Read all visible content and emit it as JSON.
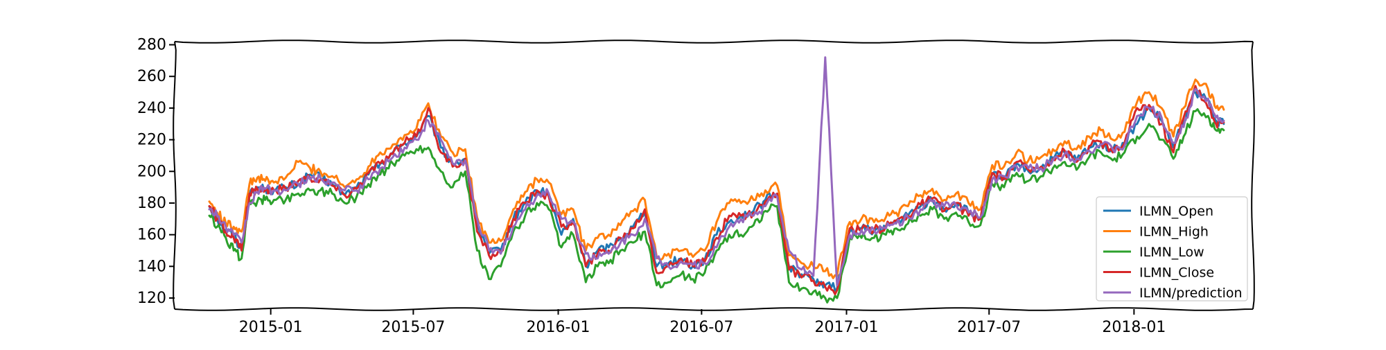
{
  "chart_data": {
    "type": "line",
    "title": "",
    "xlabel": "",
    "ylabel": "",
    "x_type": "date",
    "xlim": [
      "2014-09-01",
      "2018-06-01"
    ],
    "ylim": [
      113,
      282
    ],
    "yticks": [
      120,
      140,
      160,
      180,
      200,
      220,
      240,
      260,
      280
    ],
    "xticks": [
      {
        "date": "2015-01-01",
        "label": "2015-01"
      },
      {
        "date": "2015-07-01",
        "label": "2015-07"
      },
      {
        "date": "2016-01-01",
        "label": "2016-01"
      },
      {
        "date": "2016-07-01",
        "label": "2016-07"
      },
      {
        "date": "2017-01-01",
        "label": "2017-01"
      },
      {
        "date": "2017-07-01",
        "label": "2017-07"
      },
      {
        "date": "2018-01-01",
        "label": "2018-01"
      }
    ],
    "grid": false,
    "legend_position": "lower right",
    "x": [
      "2014-10-15",
      "2014-10-25",
      "2014-11-05",
      "2014-11-15",
      "2014-11-25",
      "2014-12-05",
      "2014-12-15",
      "2014-12-25",
      "2015-01-05",
      "2015-01-20",
      "2015-02-05",
      "2015-02-20",
      "2015-03-05",
      "2015-03-20",
      "2015-04-05",
      "2015-04-20",
      "2015-05-05",
      "2015-05-20",
      "2015-06-05",
      "2015-06-20",
      "2015-07-05",
      "2015-07-20",
      "2015-08-05",
      "2015-08-20",
      "2015-09-05",
      "2015-09-20",
      "2015-10-05",
      "2015-10-20",
      "2015-11-05",
      "2015-11-20",
      "2015-12-05",
      "2015-12-20",
      "2016-01-05",
      "2016-01-20",
      "2016-02-05",
      "2016-02-20",
      "2016-03-05",
      "2016-03-20",
      "2016-04-05",
      "2016-04-20",
      "2016-05-05",
      "2016-05-20",
      "2016-06-05",
      "2016-06-20",
      "2016-07-05",
      "2016-07-20",
      "2016-08-05",
      "2016-08-20",
      "2016-09-05",
      "2016-09-20",
      "2016-10-05",
      "2016-10-20",
      "2016-11-05",
      "2016-11-20",
      "2016-12-05",
      "2016-12-20",
      "2017-01-05",
      "2017-01-20",
      "2017-02-05",
      "2017-02-20",
      "2017-03-05",
      "2017-03-20",
      "2017-04-05",
      "2017-04-20",
      "2017-05-05",
      "2017-05-20",
      "2017-06-05",
      "2017-06-20",
      "2017-07-05",
      "2017-07-20",
      "2017-08-05",
      "2017-08-20",
      "2017-09-05",
      "2017-09-20",
      "2017-10-05",
      "2017-10-20",
      "2017-11-05",
      "2017-11-20",
      "2017-12-05",
      "2017-12-20",
      "2018-01-05",
      "2018-01-20",
      "2018-02-05",
      "2018-02-20",
      "2018-03-05",
      "2018-03-20",
      "2018-04-05",
      "2018-04-15",
      "2018-04-25"
    ],
    "series": [
      {
        "name": "ILMN_Open",
        "color": "#1f77b4",
        "values": [
          178,
          170,
          163,
          160,
          150,
          185,
          190,
          189,
          188,
          190,
          192,
          198,
          196,
          192,
          185,
          190,
          198,
          205,
          212,
          218,
          222,
          235,
          215,
          205,
          208,
          165,
          148,
          150,
          170,
          180,
          188,
          185,
          160,
          170,
          140,
          150,
          152,
          158,
          165,
          175,
          140,
          142,
          145,
          140,
          144,
          160,
          168,
          172,
          175,
          182,
          186,
          140,
          135,
          132,
          128,
          126,
          162,
          164,
          162,
          165,
          168,
          172,
          178,
          182,
          176,
          180,
          174,
          170,
          198,
          195,
          205,
          200,
          202,
          208,
          212,
          207,
          215,
          218,
          213,
          218,
          230,
          240,
          232,
          215,
          232,
          250,
          245,
          232,
          230
        ]
      },
      {
        "name": "ILMN_High",
        "color": "#ff7f0e",
        "values": [
          181,
          174,
          167,
          165,
          162,
          192,
          196,
          194,
          193,
          196,
          206,
          202,
          200,
          197,
          190,
          195,
          203,
          212,
          217,
          223,
          227,
          243,
          222,
          212,
          214,
          171,
          155,
          156,
          176,
          187,
          195,
          193,
          173,
          176,
          150,
          158,
          160,
          166,
          175,
          182,
          146,
          148,
          150,
          146,
          150,
          168,
          180,
          180,
          182,
          188,
          191,
          147,
          142,
          140,
          137,
          134,
          168,
          170,
          168,
          171,
          174,
          178,
          185,
          189,
          182,
          186,
          180,
          176,
          204,
          203,
          212,
          207,
          209,
          214,
          219,
          214,
          222,
          226,
          220,
          225,
          244,
          250,
          240,
          222,
          240,
          258,
          252,
          240,
          239
        ]
      },
      {
        "name": "ILMN_Low",
        "color": "#2ca02c",
        "values": [
          172,
          165,
          158,
          150,
          145,
          182,
          181,
          182,
          182,
          182,
          186,
          188,
          188,
          186,
          180,
          184,
          192,
          198,
          205,
          210,
          214,
          215,
          200,
          190,
          200,
          150,
          132,
          140,
          162,
          172,
          180,
          176,
          152,
          160,
          130,
          140,
          142,
          150,
          155,
          162,
          128,
          130,
          135,
          132,
          136,
          150,
          160,
          160,
          166,
          175,
          178,
          130,
          126,
          124,
          120,
          120,
          158,
          158,
          158,
          160,
          164,
          167,
          172,
          176,
          170,
          174,
          168,
          166,
          192,
          190,
          199,
          194,
          197,
          202,
          206,
          201,
          209,
          212,
          207,
          212,
          222,
          230,
          220,
          208,
          222,
          238,
          235,
          226,
          226
        ]
      },
      {
        "name": "ILMN_Close",
        "color": "#d62728",
        "values": [
          178,
          170,
          162,
          158,
          150,
          186,
          189,
          188,
          188,
          189,
          194,
          196,
          195,
          191,
          185,
          189,
          199,
          205,
          211,
          218,
          222,
          240,
          212,
          203,
          208,
          162,
          147,
          149,
          170,
          180,
          188,
          184,
          165,
          168,
          140,
          148,
          150,
          158,
          164,
          176,
          136,
          140,
          145,
          140,
          143,
          158,
          172,
          172,
          174,
          181,
          186,
          138,
          133,
          131,
          127,
          125,
          164,
          163,
          163,
          165,
          169,
          172,
          179,
          183,
          175,
          180,
          172,
          170,
          199,
          196,
          206,
          201,
          203,
          208,
          213,
          206,
          216,
          219,
          212,
          218,
          240,
          242,
          230,
          212,
          234,
          254,
          240,
          230,
          231
        ]
      },
      {
        "name": "ILMN/prediction",
        "color": "#9467bd",
        "values": [
          176,
          172,
          165,
          160,
          155,
          180,
          187,
          189,
          188,
          188,
          192,
          195,
          196,
          193,
          188,
          188,
          195,
          202,
          209,
          215,
          220,
          232,
          220,
          205,
          207,
          170,
          150,
          148,
          165,
          176,
          185,
          186,
          170,
          168,
          148,
          145,
          148,
          155,
          160,
          170,
          145,
          140,
          143,
          141,
          142,
          152,
          165,
          170,
          172,
          178,
          184,
          150,
          138,
          134,
          272,
          128,
          160,
          163,
          163,
          164,
          167,
          171,
          176,
          181,
          178,
          179,
          174,
          171,
          195,
          197,
          203,
          202,
          202,
          207,
          211,
          208,
          213,
          217,
          214,
          216,
          235,
          240,
          234,
          218,
          228,
          252,
          246,
          234,
          232
        ]
      }
    ]
  }
}
